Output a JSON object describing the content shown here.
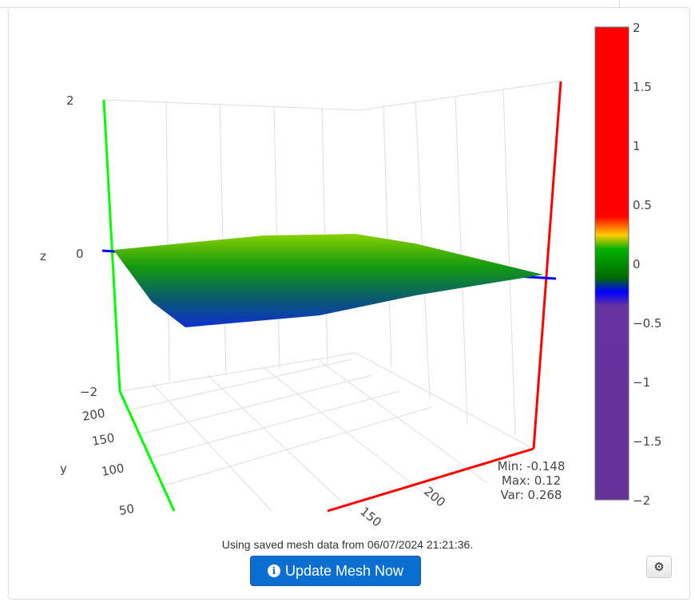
{
  "plot": {
    "z_axis": {
      "title": "z",
      "ticks": [
        "2",
        "0",
        "−2"
      ]
    },
    "y_axis": {
      "title": "y",
      "ticks": [
        "200",
        "150",
        "100",
        "50"
      ]
    },
    "x_axis": {
      "ticks": [
        "150",
        "200"
      ]
    },
    "colorbar": {
      "ticks": [
        "2",
        "1.5",
        "1",
        "0.5",
        "0",
        "−0.5",
        "−1",
        "−1.5",
        "−2"
      ],
      "range": [
        -2,
        2
      ]
    },
    "stats": {
      "min": "Min: -0.148",
      "max": "Max: 0.12",
      "var": "Var: 0.268"
    }
  },
  "status_text": "Using saved mesh data from 06/07/2024 21:21:36.",
  "update_button": {
    "label": "Update Mesh Now",
    "icon": "info-circle-icon"
  },
  "settings_button": {
    "icon": "gear-icon"
  },
  "colors": {
    "accent": "#0b6fd1",
    "x_axis": "#ff0000",
    "y_axis": "#00ff00",
    "z_zero": "#0000ff"
  }
}
